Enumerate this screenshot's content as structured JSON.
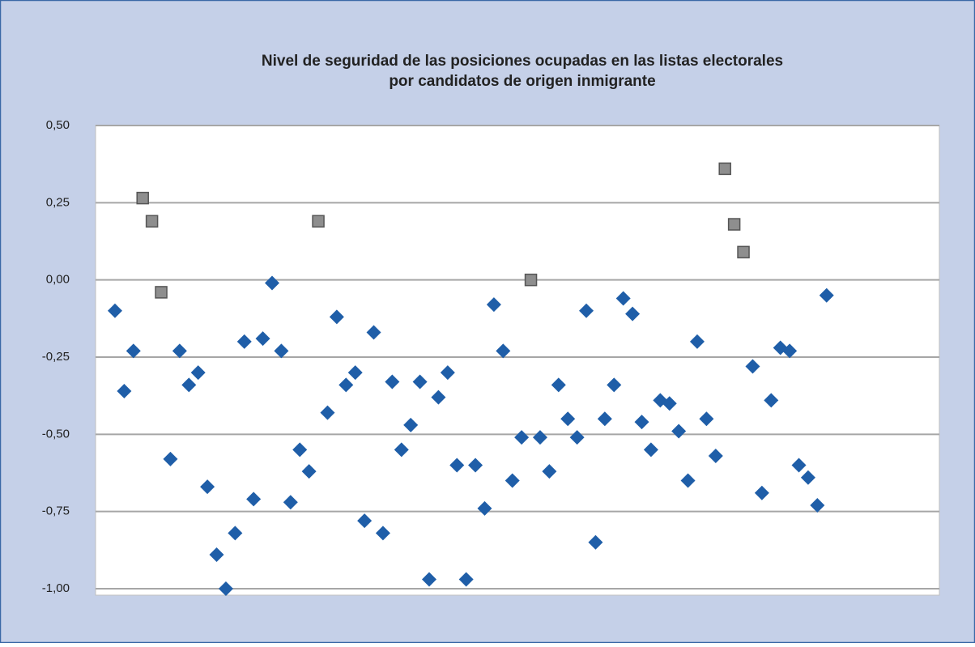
{
  "chart_data": {
    "type": "scatter",
    "title": [
      "Nivel de seguridad de las posiciones ocupadas en las listas electorales",
      "por candidatos de origen inmigrante"
    ],
    "xlim": [
      -2.1,
      89.2
    ],
    "ylim": [
      -1.0,
      0.5
    ],
    "yticks": [
      {
        "value": -1.0,
        "label": "-1,00"
      },
      {
        "value": -0.75,
        "label": "-0,75"
      },
      {
        "value": -0.5,
        "label": "-0,50"
      },
      {
        "value": -0.25,
        "label": "-0,25"
      },
      {
        "value": 0.0,
        "label": "0,00"
      },
      {
        "value": 0.25,
        "label": "0,25"
      },
      {
        "value": 0.5,
        "label": "0,50"
      }
    ],
    "grid": true,
    "series": [
      {
        "color": "#1f5ea8",
        "marker": "diamond",
        "x": [
          0,
          1,
          2,
          6,
          7,
          8,
          9,
          10,
          11,
          12,
          13,
          14,
          15,
          16,
          17,
          18,
          19,
          20,
          21,
          23,
          24,
          25,
          26,
          27,
          28,
          29,
          30,
          31,
          32,
          33,
          34,
          35,
          36,
          37,
          38,
          39,
          40,
          41,
          42,
          43,
          44,
          46,
          47,
          48,
          49,
          50,
          51,
          52,
          53,
          54,
          55,
          56,
          57,
          58,
          59,
          60,
          61,
          62,
          63,
          64,
          65,
          69,
          70,
          71,
          72,
          73,
          74,
          75,
          76,
          77
        ],
        "values": [
          -0.1,
          -0.36,
          -0.23,
          -0.58,
          -0.23,
          -0.34,
          -0.3,
          -0.67,
          -0.89,
          -1.0,
          -0.82,
          -0.2,
          -0.71,
          -0.19,
          -0.01,
          -0.23,
          -0.72,
          -0.55,
          -0.62,
          -0.43,
          -0.12,
          -0.34,
          -0.3,
          -0.78,
          -0.17,
          -0.82,
          -0.33,
          -0.55,
          -0.47,
          -0.33,
          -0.97,
          -0.38,
          -0.3,
          -0.6,
          -0.97,
          -0.6,
          -0.74,
          -0.08,
          -0.23,
          -0.65,
          -0.51,
          -0.51,
          -0.62,
          -0.34,
          -0.45,
          -0.51,
          -0.1,
          -0.85,
          -0.45,
          -0.34,
          -0.06,
          -0.11,
          -0.46,
          -0.55,
          -0.39,
          -0.4,
          -0.49,
          -0.65,
          -0.2,
          -0.45,
          -0.57,
          -0.28,
          -0.69,
          -0.39,
          -0.22,
          -0.23,
          -0.6,
          -0.64,
          -0.73,
          -0.05
        ]
      },
      {
        "color": "#8e8e8e",
        "marker": "square",
        "x": [
          3,
          4,
          5,
          22,
          45,
          66,
          67,
          68
        ],
        "values": [
          0.265,
          0.19,
          -0.04,
          0.19,
          0.0,
          0.36,
          0.18,
          0.09
        ]
      }
    ]
  }
}
